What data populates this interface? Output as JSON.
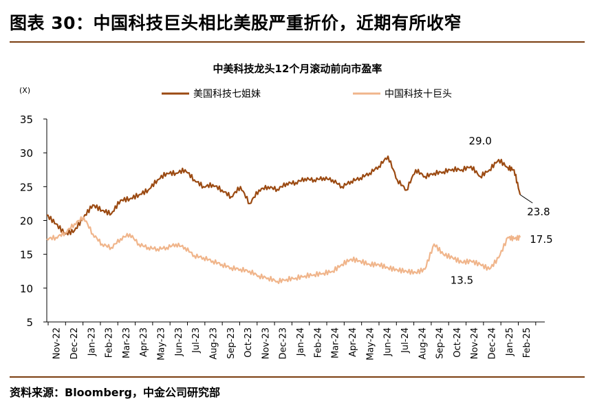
{
  "figure": {
    "title": "图表 30：中国科技巨头相比美股严重折价，近期有所收窄",
    "source": "资料来源：Bloomberg，中金公司研究部"
  },
  "colors": {
    "us": "#9b4a12",
    "cn": "#f0b58b",
    "rule": "#7a3d0f"
  },
  "chart_data": {
    "type": "line",
    "title": "中美科技龙头12个月滚动前向市盈率",
    "unit_label": "(X)",
    "ylim": [
      5,
      35
    ],
    "yticks": [
      5,
      10,
      15,
      20,
      25,
      30,
      35
    ],
    "xlim": [
      0,
      16.2
    ],
    "xtick_labels": [
      "Nov-22",
      "Dec-22",
      "Jan-23",
      "Feb-23",
      "Mar-23",
      "Apr-23",
      "May-23",
      "Jun-23",
      "Jul-23",
      "Aug-23",
      "Sep-23",
      "Oct-23",
      "Nov-23",
      "Dec-23",
      "Jan-24",
      "Feb-24",
      "Mar-24",
      "Apr-24",
      "May-24",
      "Jun-24",
      "Jul-24",
      "Aug-24",
      "Sep-24",
      "Oct-24",
      "Nov-24",
      "Dec-24",
      "Jan-25",
      "Feb-25"
    ],
    "legend_position": "top",
    "series": [
      {
        "name": "美国科技七姐妹",
        "color": "#9b4a12",
        "x": [
          0,
          0.3,
          0.6,
          0.9,
          1.2,
          1.5,
          1.8,
          2.1,
          2.4,
          2.7,
          3,
          3.3,
          3.6,
          3.9,
          4.2,
          4.5,
          4.8,
          5.1,
          5.4,
          5.7,
          6,
          6.3,
          6.6,
          6.9,
          7.2,
          7.5,
          7.8,
          8.1,
          8.4,
          8.7,
          9,
          9.3,
          9.6,
          9.9,
          10.2,
          10.5,
          10.8,
          11.1,
          11.4,
          11.7,
          12,
          12.3,
          12.6,
          12.9,
          13.2,
          13.5,
          13.8,
          14.1,
          14.4,
          14.7,
          15,
          15.2,
          15.4
        ],
        "values": [
          20.8,
          19.5,
          18.0,
          18.5,
          20.5,
          22.3,
          21.5,
          21.0,
          23.0,
          23.2,
          23.8,
          24.5,
          26.0,
          27.0,
          27.0,
          27.5,
          26.0,
          25.0,
          25.3,
          24.5,
          23.5,
          25.0,
          22.5,
          24.5,
          25.0,
          24.6,
          25.5,
          25.6,
          26.2,
          26.0,
          26.3,
          26.0,
          25.0,
          25.8,
          26.3,
          27.0,
          28.0,
          29.5,
          26.0,
          24.5,
          27.5,
          26.5,
          27.0,
          27.2,
          27.6,
          27.5,
          28.0,
          26.5,
          27.5,
          29.0,
          27.8,
          27.5,
          23.8
        ]
      },
      {
        "name": "中国科技十巨头",
        "color": "#f0b58b",
        "x": [
          0,
          0.3,
          0.6,
          0.9,
          1.2,
          1.5,
          1.8,
          2.1,
          2.4,
          2.7,
          3,
          3.3,
          3.6,
          3.9,
          4.2,
          4.5,
          4.8,
          5.1,
          5.4,
          5.7,
          6,
          6.3,
          6.6,
          6.9,
          7.2,
          7.5,
          7.8,
          8.1,
          8.4,
          8.7,
          9,
          9.3,
          9.6,
          9.9,
          10.2,
          10.5,
          10.8,
          11.1,
          11.4,
          11.7,
          12,
          12.3,
          12.6,
          12.9,
          13.2,
          13.5,
          13.8,
          14.1,
          14.4,
          14.7,
          15,
          15.2,
          15.4
        ],
        "values": [
          17.3,
          17.5,
          18.2,
          19.5,
          20.5,
          18.0,
          16.5,
          16.0,
          17.3,
          18.0,
          16.5,
          16.0,
          15.8,
          16.0,
          16.5,
          16.0,
          14.8,
          14.5,
          14.0,
          13.5,
          13.0,
          12.8,
          12.5,
          11.8,
          11.5,
          11.0,
          11.3,
          11.5,
          11.8,
          12.0,
          12.2,
          12.5,
          13.5,
          14.3,
          14.0,
          13.5,
          13.5,
          13.0,
          12.7,
          12.5,
          12.3,
          12.8,
          16.5,
          15.0,
          14.5,
          13.8,
          14.0,
          13.5,
          12.8,
          14.5,
          17.5,
          17.3,
          17.5
        ]
      }
    ],
    "annotations": [
      {
        "series": "美国科技七姐妹",
        "label": "29.0",
        "x": 14.55,
        "y": 29.0,
        "kind": "max"
      },
      {
        "series": "美国科技七姐妹",
        "label": "23.8",
        "x": 15.4,
        "y": 23.8,
        "kind": "last"
      },
      {
        "series": "中国科技十巨头",
        "label": "13.5",
        "x": 14.1,
        "y": 13.5,
        "kind": "point"
      },
      {
        "series": "中国科技十巨头",
        "label": "17.5",
        "x": 15.4,
        "y": 17.5,
        "kind": "last"
      }
    ]
  }
}
